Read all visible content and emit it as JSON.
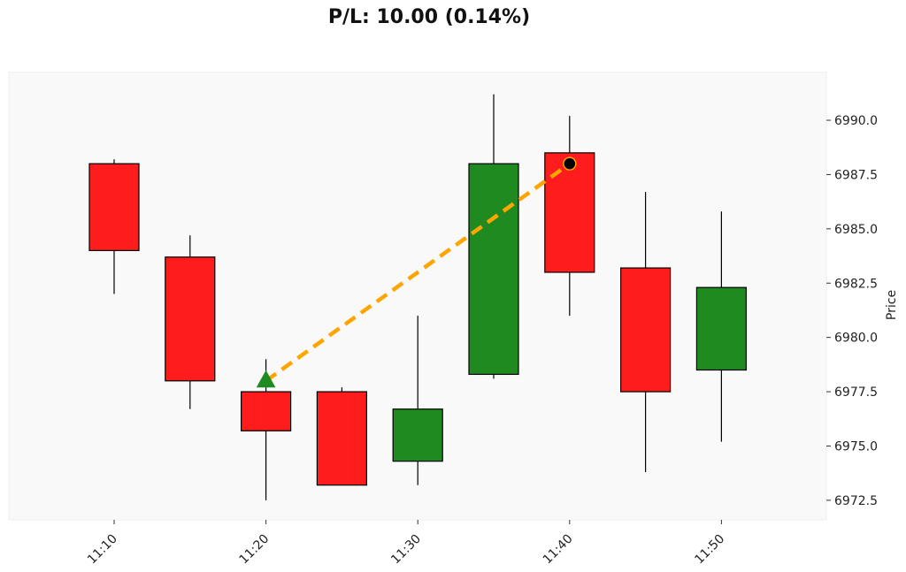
{
  "title": "P/L: 10.00 (0.14%)",
  "colors": {
    "up": "#1f8a1f",
    "down": "#ff1c1c",
    "trade_line": "#ffa500",
    "entry_marker": "#1f8a1f",
    "exit_marker": "#000000",
    "plot_background": "#f9f9f9"
  },
  "chart_data": {
    "type": "candlestick",
    "title": "P/L: 10.00 (0.14%)",
    "ylabel": "Price",
    "ylim": [
      6971.6,
      6992.2
    ],
    "y_axis_side": "right",
    "yticks": [
      6972.5,
      6975.0,
      6977.5,
      6980.0,
      6982.5,
      6985.0,
      6987.5,
      6990.0
    ],
    "x_tick_labels": [
      "11:10",
      "11:20",
      "11:30",
      "11:40",
      "11:50"
    ],
    "x_tick_candle_index": [
      0,
      2,
      4,
      6,
      8
    ],
    "candles": [
      {
        "time": "11:10",
        "open": 6988.0,
        "high": 6988.2,
        "low": 6982.0,
        "close": 6984.0
      },
      {
        "time": "11:15",
        "open": 6983.7,
        "high": 6984.7,
        "low": 6976.7,
        "close": 6978.0
      },
      {
        "time": "11:20",
        "open": 6977.5,
        "high": 6979.0,
        "low": 6972.5,
        "close": 6975.7
      },
      {
        "time": "11:25",
        "open": 6977.5,
        "high": 6977.7,
        "low": 6973.2,
        "close": 6973.2
      },
      {
        "time": "11:30",
        "open": 6974.3,
        "high": 6981.0,
        "low": 6973.2,
        "close": 6976.7
      },
      {
        "time": "11:35",
        "open": 6978.3,
        "high": 6991.2,
        "low": 6978.1,
        "close": 6988.0
      },
      {
        "time": "11:40",
        "open": 6988.5,
        "high": 6990.2,
        "low": 6981.0,
        "close": 6983.0
      },
      {
        "time": "11:45",
        "open": 6983.2,
        "high": 6986.7,
        "low": 6973.8,
        "close": 6977.5
      },
      {
        "time": "11:50",
        "open": 6978.5,
        "high": 6985.8,
        "low": 6975.2,
        "close": 6982.3
      }
    ],
    "trade": {
      "entry": {
        "time": "11:20",
        "price": 6978.0,
        "marker": "triangle-up"
      },
      "exit": {
        "time": "11:40",
        "price": 6988.0,
        "marker": "circle"
      },
      "line_style": "dashed"
    },
    "grid": false
  }
}
